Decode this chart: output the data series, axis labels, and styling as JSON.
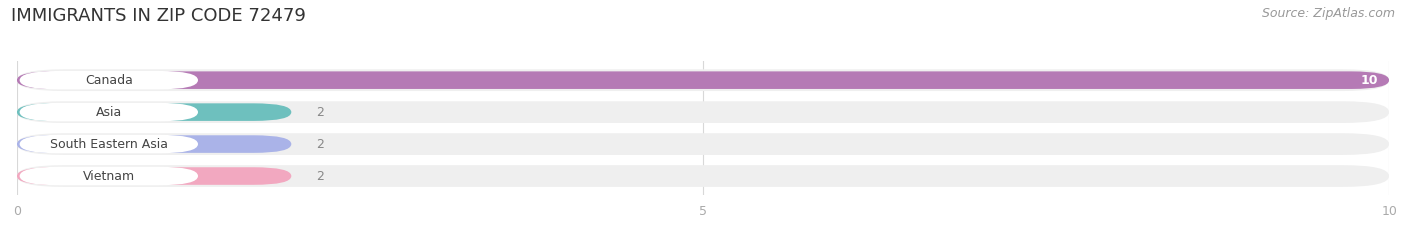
{
  "title": "IMMIGRANTS IN ZIP CODE 72479",
  "source": "Source: ZipAtlas.com",
  "categories": [
    "Canada",
    "Asia",
    "South Eastern Asia",
    "Vietnam"
  ],
  "values": [
    10,
    2,
    2,
    2
  ],
  "bar_colors": [
    "#b57ab5",
    "#6ec0be",
    "#aab3e8",
    "#f2a8c0"
  ],
  "bar_bg_color": "#efefef",
  "xlim": [
    0,
    10
  ],
  "xticks": [
    0,
    5,
    10
  ],
  "bg_color": "#ffffff",
  "title_fontsize": 13,
  "source_fontsize": 9,
  "label_fontsize": 9,
  "tick_fontsize": 9,
  "grid_color": "#d8d8d8"
}
